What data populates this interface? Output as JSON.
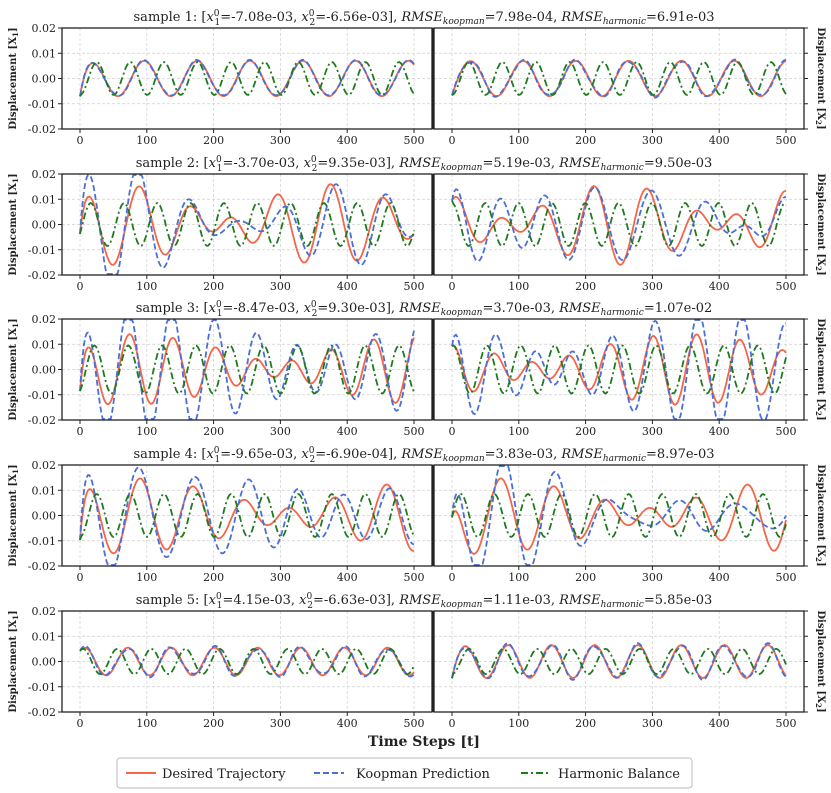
{
  "chart_data": {
    "type": "line",
    "xlabel": "Time Steps [t]",
    "ylabel_left": "Displacement [X",
    "ylabel_left_sub": "1",
    "ylabel_right": "Displacement [X",
    "ylabel_right_sub": "2",
    "xlim": [
      0,
      500
    ],
    "ylim": [
      -0.02,
      0.02
    ],
    "xticks": [
      "0",
      "100",
      "200",
      "300",
      "400",
      "500"
    ],
    "yticks": [
      "-0.02",
      "-0.01",
      "0.00",
      "0.01",
      "0.02"
    ],
    "grid": true,
    "legend_position": "bottom-center",
    "legend": [
      {
        "name": "Desired Trajectory",
        "color": "#f26749",
        "dash": "solid"
      },
      {
        "name": "Koopman Prediction",
        "color": "#4a6fd8",
        "dash": "dashed"
      },
      {
        "name": "Harmonic Balance",
        "color": "#1e7a1e",
        "dash": "dashdot"
      }
    ],
    "samples": [
      {
        "title": "sample 1: [x1⁰=-7.08e-03, x2⁰=-6.56e-03], RMSE_koopman=7.98e-04, RMSE_harmonic=6.91e-03",
        "label": "sample 1: [",
        "x1": "-7.08e-03",
        "x2": "-6.56e-03",
        "koop": "7.98e-04",
        "harm": "6.91e-03",
        "left": {
          "a": [
            [
              0.007,
              0.0795,
              0.2
            ]
          ],
          "b": [
            [
              0.0004,
              0.155,
              0
            ]
          ],
          "start": -0.0071,
          "hb_amp": 0.0065,
          "hb_w": 0.125
        },
        "right": {
          "a": [
            [
              0.007,
              0.0795,
              -0.6
            ]
          ],
          "b": [
            [
              0.0006,
              0.18,
              0.3
            ]
          ],
          "start": -0.0066,
          "hb_amp": 0.0065,
          "hb_w": 0.125
        }
      },
      {
        "title": "sample 2: [x1⁰=-3.70e-03, x2⁰=9.35e-03], RMSE_koopman=5.19e-03, RMSE_harmonic=9.50e-03",
        "label": "sample 2: [",
        "x1": "-3.70e-03",
        "x2": "9.35e-03",
        "koop": "5.19e-03",
        "harm": "9.50e-03",
        "left": {
          "a": [
            [
              0.009,
              0.087,
              0.4
            ],
            [
              0.007,
              0.067,
              1.5
            ]
          ],
          "b": [
            [
              0.006,
              0.08,
              0.8
            ],
            [
              0.004,
              0.1,
              0.2
            ]
          ],
          "start": -0.0037,
          "hb_amp": 0.0085,
          "hb_w": 0.126
        },
        "right": {
          "a": [
            [
              0.009,
              0.087,
              1.7
            ],
            [
              0.007,
              0.067,
              0.3
            ]
          ],
          "b": [
            [
              0.005,
              0.08,
              1.9
            ],
            [
              0.003,
              0.1,
              1.0
            ]
          ],
          "start": 0.0094,
          "hb_amp": 0.0085,
          "hb_w": 0.126
        }
      },
      {
        "title": "sample 3: [x1⁰=-8.47e-03, x2⁰=9.30e-03], RMSE_koopman=3.70e-03, RMSE_harmonic=1.07e-02",
        "label": "sample 3: [",
        "x1": "-8.47e-03",
        "x2": "9.30e-03",
        "koop": "3.70e-03",
        "harm": "1.07e-02",
        "left": {
          "a": [
            [
              0.0085,
              0.102,
              0.3
            ],
            [
              0.0055,
              0.088,
              1.3
            ]
          ],
          "b": [
            [
              0.008,
              0.1,
              0.6
            ],
            [
              0.004,
              0.09,
              2.1
            ]
          ],
          "start": -0.0085,
          "hb_amp": 0.0095,
          "hb_w": 0.124
        },
        "right": {
          "a": [
            [
              0.0085,
              0.102,
              2.0
            ],
            [
              0.0055,
              0.088,
              0.6
            ]
          ],
          "b": [
            [
              0.008,
              0.1,
              1.6
            ],
            [
              0.004,
              0.09,
              0.4
            ]
          ],
          "start": 0.0093,
          "hb_amp": 0.0095,
          "hb_w": 0.124
        }
      },
      {
        "title": "sample 4: [x1⁰=-9.65e-03, x2⁰=-6.90e-04], RMSE_koopman=3.83e-03, RMSE_harmonic=8.97e-03",
        "label": "sample 4: [",
        "x1": "-9.65e-03",
        "x2": "-6.90e-04",
        "koop": "3.83e-03",
        "harm": "8.97e-03",
        "left": {
          "a": [
            [
              0.009,
              0.0835,
              0.5
            ],
            [
              0.006,
              0.071,
              1.2
            ]
          ],
          "b": [
            [
              0.007,
              0.078,
              0.8
            ],
            [
              0.004,
              0.095,
              1.7
            ]
          ],
          "start": -0.0097,
          "hb_amp": 0.0085,
          "hb_w": 0.125
        },
        "right": {
          "a": [
            [
              0.009,
              0.0835,
              1.9
            ],
            [
              0.006,
              0.071,
              2.4
            ]
          ],
          "b": [
            [
              0.007,
              0.078,
              1.1
            ],
            [
              0.004,
              0.095,
              0.5
            ]
          ],
          "start": -0.0007,
          "hb_amp": 0.0085,
          "hb_w": 0.125
        }
      },
      {
        "title": "sample 5: [x1⁰=4.15e-03, x2⁰=-6.63e-03], RMSE_koopman=1.11e-03, RMSE_harmonic=5.85e-03",
        "label": "sample 5: [",
        "x1": "4.15e-03",
        "x2": "-6.63e-03",
        "koop": "1.11e-03",
        "harm": "5.85e-03",
        "left": {
          "a": [
            [
              0.0055,
              0.097,
              0.9
            ]
          ],
          "b": [
            [
              0.0008,
              0.16,
              0.2
            ]
          ],
          "start": 0.0042,
          "hb_amp": 0.005,
          "hb_w": 0.123
        },
        "right": {
          "a": [
            [
              0.0065,
              0.097,
              -0.3
            ]
          ],
          "b": [
            [
              0.0008,
              0.16,
              1.2
            ]
          ],
          "start": -0.0066,
          "hb_amp": 0.005,
          "hb_w": 0.123
        }
      }
    ]
  }
}
